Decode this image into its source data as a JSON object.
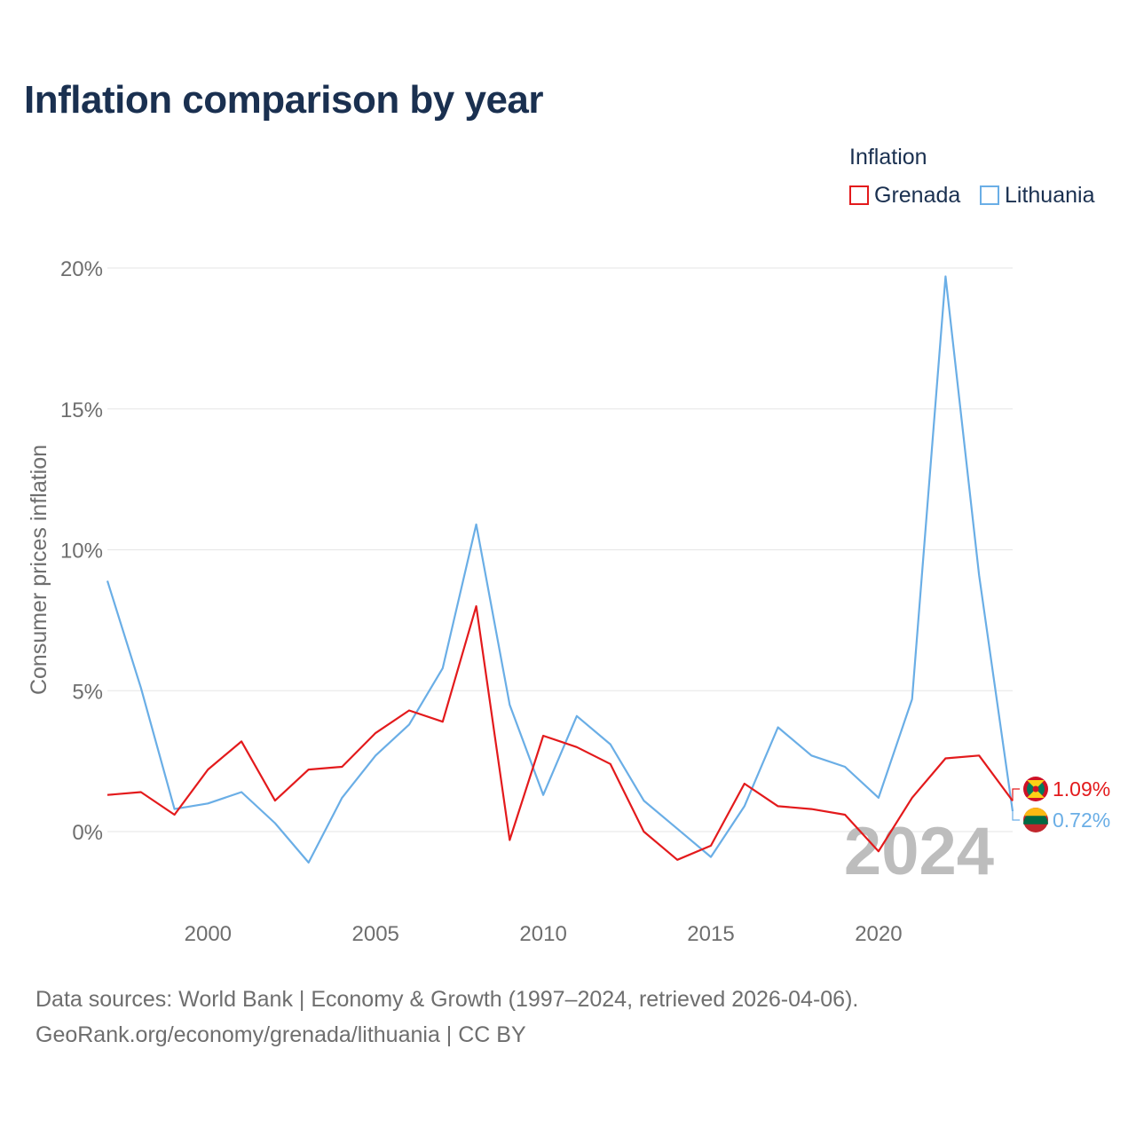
{
  "title": "Inflation comparison by year",
  "legend": {
    "title": "Inflation",
    "items": [
      {
        "label": "Grenada",
        "color": "#e31a1c"
      },
      {
        "label": "Lithuania",
        "color": "#6aaee6"
      }
    ]
  },
  "year_watermark": "2024",
  "footer": {
    "line1": "Data sources: World Bank | Economy & Growth (1997–2024, retrieved 2026-04-06).",
    "line2": "GeoRank.org/economy/grenada/lithuania | CC BY"
  },
  "chart_data": {
    "type": "line",
    "title": "Inflation comparison by year",
    "xlabel": "",
    "ylabel": "Consumer prices inflation",
    "x": [
      1997,
      1998,
      1999,
      2000,
      2001,
      2002,
      2003,
      2004,
      2005,
      2006,
      2007,
      2008,
      2009,
      2010,
      2011,
      2012,
      2013,
      2014,
      2015,
      2016,
      2017,
      2018,
      2019,
      2020,
      2021,
      2022,
      2023,
      2024
    ],
    "xlim": [
      1997,
      2024
    ],
    "ylim": [
      -2.5,
      20
    ],
    "x_ticks": [
      2000,
      2005,
      2010,
      2015,
      2020
    ],
    "x_tick_labels": [
      "2000",
      "2005",
      "2010",
      "2015",
      "2020"
    ],
    "y_ticks": [
      0,
      5,
      10,
      15,
      20
    ],
    "y_tick_labels": [
      "0%",
      "5%",
      "10%",
      "15%",
      "20%"
    ],
    "grid": true,
    "series": [
      {
        "name": "Grenada",
        "color": "#e31a1c",
        "values": [
          1.3,
          1.4,
          0.6,
          2.2,
          3.2,
          1.1,
          2.2,
          2.3,
          3.5,
          4.3,
          3.9,
          8.0,
          -0.3,
          3.4,
          3.0,
          2.4,
          0.0,
          -1.0,
          -0.5,
          1.7,
          0.9,
          0.8,
          0.6,
          -0.7,
          1.2,
          2.6,
          2.7,
          1.09
        ],
        "end_label": "1.09%"
      },
      {
        "name": "Lithuania",
        "color": "#6aaee6",
        "values": [
          8.9,
          5.1,
          0.8,
          1.0,
          1.4,
          0.3,
          -1.1,
          1.2,
          2.7,
          3.8,
          5.8,
          10.9,
          4.5,
          1.3,
          4.1,
          3.1,
          1.1,
          0.1,
          -0.9,
          0.9,
          3.7,
          2.7,
          2.3,
          1.2,
          4.7,
          19.7,
          9.1,
          0.72
        ],
        "end_label": "0.72%"
      }
    ]
  }
}
